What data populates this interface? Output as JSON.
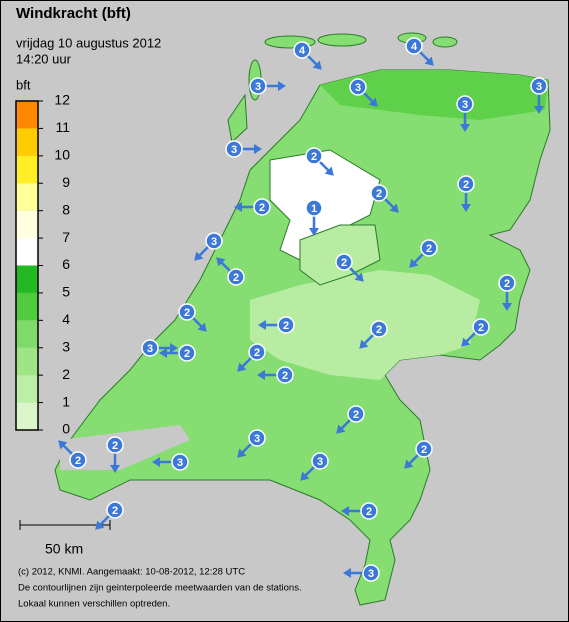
{
  "header": {
    "title": "Windkracht (bft)",
    "date": "vrijdag 10 augustus 2012",
    "time": "14:20 uur"
  },
  "legend": {
    "unit": "bft",
    "ticks": [
      0,
      1,
      2,
      3,
      4,
      5,
      6,
      7,
      8,
      9,
      10,
      11,
      12
    ],
    "colors": [
      "#d9f5c9",
      "#bdeea6",
      "#9fe586",
      "#7fdb69",
      "#4fcb3d",
      "#22b922",
      "#ffffff",
      "#ffffe0",
      "#ffff99",
      "#ffee22",
      "#ffcc00",
      "#ff8800"
    ]
  },
  "stations": [
    4,
    4,
    3,
    3,
    3,
    3,
    3,
    2,
    1,
    2,
    2,
    2,
    3,
    2,
    2,
    2,
    2,
    2,
    2,
    2,
    2,
    3,
    2,
    2,
    2,
    2,
    2,
    3,
    2,
    2,
    3,
    3,
    2,
    2,
    3
  ],
  "scale_bar": "50 km",
  "footer": [
    "(c) 2012, KNMI. Aangemaakt: 10-08-2012, 12:28 UTC",
    "De contourlijnen zijn geinterpoleerde meetwaarden van de stations.",
    "Lokaal kunnen verschillen optreden."
  ]
}
